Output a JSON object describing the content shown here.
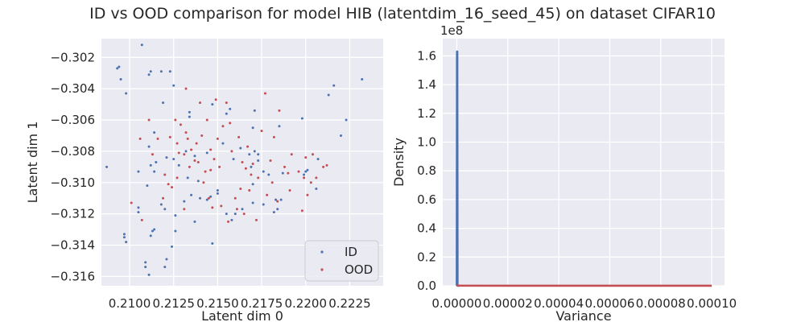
{
  "figure": {
    "title": "ID vs OOD comparison for model HIB (latentdim_16_seed_45) on dataset CIFAR10"
  },
  "colors": {
    "background": "#eaeaf2",
    "grid": "#ffffff",
    "id_series": "#4c72b0",
    "ood_series": "#c44e52"
  },
  "chart_data": [
    {
      "type": "scatter",
      "xlabel": "Latent dim 0",
      "ylabel": "Latent dim 1",
      "xlim": [
        0.2084,
        0.2244
      ],
      "ylim": [
        -0.3166,
        -0.3008
      ],
      "xticks": [
        0.21,
        0.2125,
        0.215,
        0.2175,
        0.22,
        0.2225
      ],
      "xtick_labels": [
        "0.2100",
        "0.2125",
        "0.2150",
        "0.2175",
        "0.2200",
        "0.2225"
      ],
      "yticks": [
        -0.302,
        -0.304,
        -0.306,
        -0.308,
        -0.31,
        -0.312,
        -0.314,
        -0.316
      ],
      "ytick_labels": [
        "−0.302",
        "−0.304",
        "−0.306",
        "−0.308",
        "−0.310",
        "−0.312",
        "−0.314",
        "−0.316"
      ],
      "grid": true,
      "legend_position": "lower-right",
      "series": [
        {
          "name": "ID",
          "color": "#4c72b0",
          "points": [
            [
              0.2087,
              -0.309
            ],
            [
              0.2093,
              -0.3027
            ],
            [
              0.2094,
              -0.3026
            ],
            [
              0.2095,
              -0.3034
            ],
            [
              0.2098,
              -0.3043
            ],
            [
              0.2097,
              -0.3133
            ],
            [
              0.2097,
              -0.3135
            ],
            [
              0.2098,
              -0.3138
            ],
            [
              0.2107,
              -0.3012
            ],
            [
              0.2105,
              -0.3093
            ],
            [
              0.2105,
              -0.3116
            ],
            [
              0.2105,
              -0.3119
            ],
            [
              0.2109,
              -0.3151
            ],
            [
              0.2109,
              -0.3154
            ],
            [
              0.211,
              -0.3102
            ],
            [
              0.2111,
              -0.3031
            ],
            [
              0.2112,
              -0.3029
            ],
            [
              0.2111,
              -0.3077
            ],
            [
              0.2112,
              -0.3089
            ],
            [
              0.2111,
              -0.3159
            ],
            [
              0.2112,
              -0.3134
            ],
            [
              0.2113,
              -0.3131
            ],
            [
              0.2114,
              -0.3068
            ],
            [
              0.2114,
              -0.313
            ],
            [
              0.2115,
              -0.3087
            ],
            [
              0.2114,
              -0.3093
            ],
            [
              0.2118,
              -0.3029
            ],
            [
              0.2119,
              -0.3049
            ],
            [
              0.2118,
              -0.3114
            ],
            [
              0.212,
              -0.3117
            ],
            [
              0.212,
              -0.3154
            ],
            [
              0.2121,
              -0.3149
            ],
            [
              0.2123,
              -0.3029
            ],
            [
              0.2121,
              -0.3084
            ],
            [
              0.2124,
              -0.3141
            ],
            [
              0.2125,
              -0.3038
            ],
            [
              0.2125,
              -0.3085
            ],
            [
              0.2126,
              -0.3121
            ],
            [
              0.2126,
              -0.3131
            ],
            [
              0.2128,
              -0.3089
            ],
            [
              0.2131,
              -0.3112
            ],
            [
              0.2132,
              -0.308
            ],
            [
              0.2134,
              -0.3055
            ],
            [
              0.2134,
              -0.3058
            ],
            [
              0.2133,
              -0.3097
            ],
            [
              0.2135,
              -0.3108
            ],
            [
              0.2137,
              -0.3125
            ],
            [
              0.2137,
              -0.3083
            ],
            [
              0.2139,
              -0.3099
            ],
            [
              0.214,
              -0.311
            ],
            [
              0.2144,
              -0.3111
            ],
            [
              0.2144,
              -0.3081
            ],
            [
              0.2146,
              -0.3109
            ],
            [
              0.2147,
              -0.305
            ],
            [
              0.2147,
              -0.3139
            ],
            [
              0.215,
              -0.3107
            ],
            [
              0.215,
              -0.3105
            ],
            [
              0.2153,
              -0.3075
            ],
            [
              0.2155,
              -0.3056
            ],
            [
              0.2155,
              -0.312
            ],
            [
              0.2157,
              -0.3053
            ],
            [
              0.2158,
              -0.3124
            ],
            [
              0.2159,
              -0.3085
            ],
            [
              0.216,
              -0.312
            ],
            [
              0.2163,
              -0.3078
            ],
            [
              0.2164,
              -0.3117
            ],
            [
              0.2168,
              -0.3082
            ],
            [
              0.2169,
              -0.309
            ],
            [
              0.217,
              -0.3101
            ],
            [
              0.217,
              -0.3113
            ],
            [
              0.217,
              -0.3065
            ],
            [
              0.2171,
              -0.3054
            ],
            [
              0.2171,
              -0.308
            ],
            [
              0.2173,
              -0.3082
            ],
            [
              0.2173,
              -0.3086
            ],
            [
              0.2176,
              -0.3093
            ],
            [
              0.2176,
              -0.3114
            ],
            [
              0.2179,
              -0.3095
            ],
            [
              0.2182,
              -0.3119
            ],
            [
              0.2183,
              -0.3111
            ],
            [
              0.2184,
              -0.3117
            ],
            [
              0.2185,
              -0.3064
            ],
            [
              0.2186,
              -0.3111
            ],
            [
              0.2187,
              -0.3094
            ],
            [
              0.2198,
              -0.3059
            ],
            [
              0.2199,
              -0.3095
            ],
            [
              0.22,
              -0.3093
            ],
            [
              0.2201,
              -0.3092
            ],
            [
              0.2206,
              -0.3104
            ],
            [
              0.2207,
              -0.3085
            ],
            [
              0.2213,
              -0.3044
            ],
            [
              0.2216,
              -0.3038
            ],
            [
              0.222,
              -0.307
            ],
            [
              0.2223,
              -0.306
            ],
            [
              0.2232,
              -0.3034
            ]
          ]
        },
        {
          "name": "OOD",
          "color": "#c44e52",
          "points": [
            [
              0.2101,
              -0.3113
            ],
            [
              0.2106,
              -0.3072
            ],
            [
              0.2107,
              -0.3124
            ],
            [
              0.2111,
              -0.306
            ],
            [
              0.2113,
              -0.3082
            ],
            [
              0.2116,
              -0.3072
            ],
            [
              0.2119,
              -0.311
            ],
            [
              0.212,
              -0.3095
            ],
            [
              0.2122,
              -0.3101
            ],
            [
              0.2123,
              -0.3071
            ],
            [
              0.2124,
              -0.3103
            ],
            [
              0.2126,
              -0.306
            ],
            [
              0.2127,
              -0.3075
            ],
            [
              0.2127,
              -0.3097
            ],
            [
              0.2128,
              -0.3081
            ],
            [
              0.2129,
              -0.3063
            ],
            [
              0.2131,
              -0.3082
            ],
            [
              0.2132,
              -0.3068
            ],
            [
              0.2131,
              -0.3117
            ],
            [
              0.2132,
              -0.304
            ],
            [
              0.2133,
              -0.3072
            ],
            [
              0.2134,
              -0.309
            ],
            [
              0.2135,
              -0.3079
            ],
            [
              0.2137,
              -0.3086
            ],
            [
              0.2138,
              -0.3075
            ],
            [
              0.2139,
              -0.3087
            ],
            [
              0.214,
              -0.3049
            ],
            [
              0.2141,
              -0.307
            ],
            [
              0.2142,
              -0.31
            ],
            [
              0.2143,
              -0.3093
            ],
            [
              0.2144,
              -0.306
            ],
            [
              0.2145,
              -0.311
            ],
            [
              0.2146,
              -0.3079
            ],
            [
              0.2147,
              -0.3116
            ],
            [
              0.2148,
              -0.3085
            ],
            [
              0.2149,
              -0.3047
            ],
            [
              0.215,
              -0.3072
            ],
            [
              0.2151,
              -0.309
            ],
            [
              0.2152,
              -0.3115
            ],
            [
              0.2153,
              -0.3064
            ],
            [
              0.2155,
              -0.3049
            ],
            [
              0.2156,
              -0.3125
            ],
            [
              0.2157,
              -0.3062
            ],
            [
              0.2158,
              -0.308
            ],
            [
              0.216,
              -0.311
            ],
            [
              0.2161,
              -0.3117
            ],
            [
              0.2162,
              -0.3071
            ],
            [
              0.2163,
              -0.3104
            ],
            [
              0.2164,
              -0.3087
            ],
            [
              0.2165,
              -0.312
            ],
            [
              0.2166,
              -0.3091
            ],
            [
              0.2167,
              -0.3077
            ],
            [
              0.2168,
              -0.3105
            ],
            [
              0.2169,
              -0.3095
            ],
            [
              0.217,
              -0.3088
            ],
            [
              0.2172,
              -0.3124
            ],
            [
              0.2173,
              -0.3097
            ],
            [
              0.2175,
              -0.3067
            ],
            [
              0.2177,
              -0.3043
            ],
            [
              0.2178,
              -0.3108
            ],
            [
              0.218,
              -0.3086
            ],
            [
              0.2181,
              -0.31
            ],
            [
              0.2182,
              -0.3071
            ],
            [
              0.2184,
              -0.3112
            ],
            [
              0.2185,
              -0.3054
            ],
            [
              0.2188,
              -0.309
            ],
            [
              0.219,
              -0.3094
            ],
            [
              0.2192,
              -0.3082
            ],
            [
              0.2196,
              -0.3093
            ],
            [
              0.2198,
              -0.3118
            ],
            [
              0.2199,
              -0.3097
            ],
            [
              0.22,
              -0.3084
            ],
            [
              0.2201,
              -0.3108
            ],
            [
              0.2203,
              -0.31
            ],
            [
              0.2204,
              -0.3082
            ],
            [
              0.2206,
              -0.3097
            ],
            [
              0.221,
              -0.309
            ],
            [
              0.2212,
              -0.3089
            ],
            [
              0.2191,
              -0.3105
            ],
            [
              0.2146,
              -0.3092
            ]
          ]
        }
      ]
    },
    {
      "type": "line",
      "xlabel": "Variance",
      "ylabel": "Density",
      "offset_label": "1e8",
      "xlim": [
        -5.5e-06,
        0.000105
      ],
      "ylim": [
        0,
        1.72
      ],
      "xticks": [
        0,
        2e-05,
        4e-05,
        6e-05,
        8e-05,
        0.0001
      ],
      "xtick_labels": [
        "0.00000",
        "0.00002",
        "0.00004",
        "0.00006",
        "0.00008",
        "0.00010"
      ],
      "yticks": [
        0,
        0.2,
        0.4,
        0.6,
        0.8,
        1.0,
        1.2,
        1.4,
        1.6
      ],
      "ytick_labels": [
        "0.0",
        "0.2",
        "0.4",
        "0.6",
        "0.8",
        "1.0",
        "1.2",
        "1.4",
        "1.6"
      ],
      "grid": true,
      "series": [
        {
          "name": "ID",
          "color": "#4c72b0",
          "x": [
            0.0,
            1e-07,
            2e-07,
            3e-07,
            1e-06
          ],
          "y": [
            0,
            1.63,
            1.63,
            0,
            0
          ]
        },
        {
          "name": "OOD",
          "color": "#c44e52",
          "x": [
            0.0,
            2e-07,
            5e-07,
            1e-06,
            2e-05,
            4e-05,
            6e-05,
            8e-05,
            0.0001
          ],
          "y": [
            0,
            0.004,
            0.002,
            0.001,
            0.0005,
            0.0004,
            0.0003,
            0.0002,
            0.0001
          ]
        }
      ]
    }
  ]
}
